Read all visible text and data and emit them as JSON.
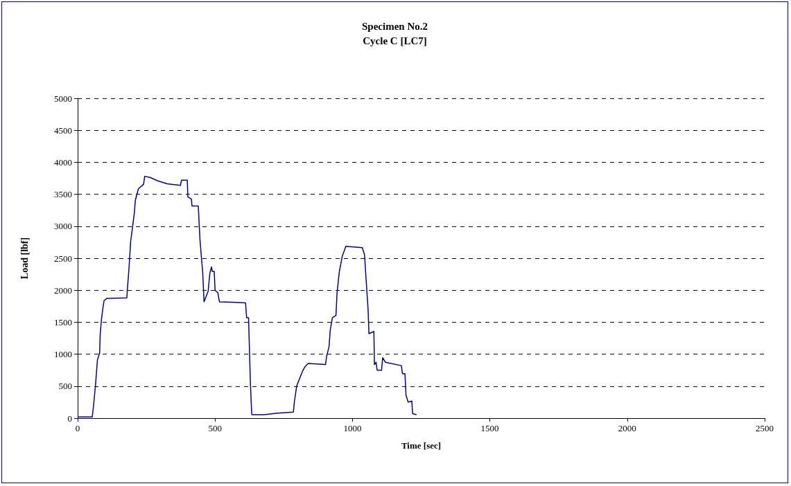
{
  "chart_data": {
    "type": "line",
    "title": "Specimen No.2",
    "subtitle": "Cycle C [LC7]",
    "xlabel": "Time [sec]",
    "ylabel": "Load [lbf]",
    "xlim": [
      0,
      2500
    ],
    "xticks": [
      0,
      500,
      1000,
      1500,
      2000,
      2500
    ],
    "ylim": [
      0,
      5000
    ],
    "yticks": [
      0,
      500,
      1000,
      1500,
      2000,
      2500,
      3000,
      3500,
      4000,
      4500,
      5000
    ],
    "grid": "y",
    "marker": "none",
    "line_style": "solid",
    "series": [
      {
        "color": "#00008b",
        "x": [
          0,
          53,
          57,
          65,
          72,
          80,
          82,
          86,
          91,
          96,
          107,
          179,
          181,
          187,
          193,
          200,
          206,
          210,
          221,
          240,
          244,
          263,
          292,
          326,
          374,
          378,
          399,
          401,
          414,
          416,
          439,
          445,
          450,
          455,
          460,
          475,
          481,
          487,
          490,
          497,
          500,
          510,
          516,
          560,
          611,
          615,
          622,
          626,
          629,
          632,
          634,
          678,
          728,
          785,
          789,
          797,
          805,
          818,
          827,
          839,
          902,
          906,
          915,
          919,
          927,
          940,
          944,
          952,
          963,
          976,
          1036,
          1044,
          1049,
          1057,
          1060,
          1078,
          1080,
          1086,
          1090,
          1106,
          1110,
          1120,
          1178,
          1182,
          1191,
          1195,
          1203,
          1216,
          1219,
          1233
        ],
        "values": [
          18,
          18,
          160,
          517,
          910,
          1017,
          1302,
          1516,
          1694,
          1837,
          1873,
          1880,
          2015,
          2354,
          2765,
          2996,
          3193,
          3407,
          3585,
          3656,
          3781,
          3763,
          3710,
          3663,
          3638,
          3720,
          3720,
          3460,
          3424,
          3317,
          3317,
          2800,
          2533,
          2283,
          1819,
          1987,
          2265,
          2365,
          2294,
          2294,
          1998,
          1962,
          1819,
          1812,
          1801,
          1570,
          1570,
          945,
          517,
          196,
          54,
          54,
          78,
          96,
          268,
          500,
          589,
          731,
          803,
          856,
          838,
          963,
          1124,
          1373,
          1570,
          1605,
          1962,
          2283,
          2533,
          2686,
          2665,
          2551,
          2212,
          1694,
          1320,
          1356,
          838,
          874,
          749,
          749,
          945,
          874,
          821,
          696,
          696,
          357,
          250,
          268,
          71,
          54
        ]
      }
    ]
  }
}
